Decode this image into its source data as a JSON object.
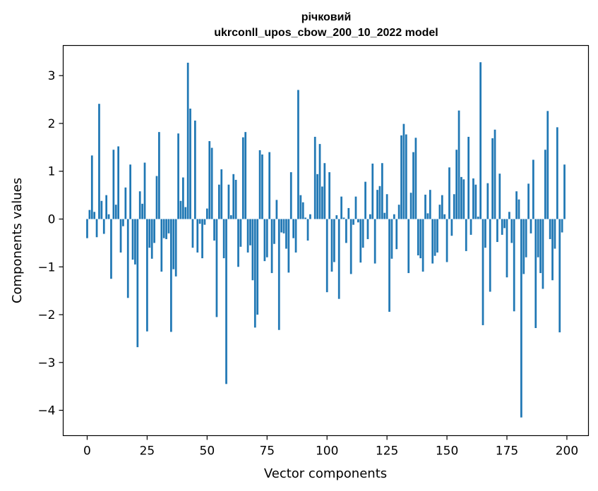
{
  "chart_data": {
    "type": "bar",
    "title": "річковий",
    "subtitle": "ukrconll_upos_cbow_200_10_2022 model",
    "xlabel": "Vector components",
    "ylabel": "Components values",
    "xlim": [
      -10,
      209
    ],
    "ylim": [
      -4.53,
      3.63
    ],
    "xticks": [
      0,
      25,
      50,
      75,
      100,
      125,
      150,
      175,
      200
    ],
    "yticks": [
      -4,
      -3,
      -2,
      -1,
      0,
      1,
      2,
      3
    ],
    "xtick_labels": [
      "0",
      "25",
      "50",
      "75",
      "100",
      "125",
      "150",
      "175",
      "200"
    ],
    "ytick_labels": [
      "−4",
      "−3",
      "−2",
      "−1",
      "0",
      "1",
      "2",
      "3"
    ],
    "grid": false,
    "bar_color": "#1f77b4",
    "x": [
      0,
      1,
      2,
      3,
      4,
      5,
      6,
      7,
      8,
      9,
      10,
      11,
      12,
      13,
      14,
      15,
      16,
      17,
      18,
      19,
      20,
      21,
      22,
      23,
      24,
      25,
      26,
      27,
      28,
      29,
      30,
      31,
      32,
      33,
      34,
      35,
      36,
      37,
      38,
      39,
      40,
      41,
      42,
      43,
      44,
      45,
      46,
      47,
      48,
      49,
      50,
      51,
      52,
      53,
      54,
      55,
      56,
      57,
      58,
      59,
      60,
      61,
      62,
      63,
      64,
      65,
      66,
      67,
      68,
      69,
      70,
      71,
      72,
      73,
      74,
      75,
      76,
      77,
      78,
      79,
      80,
      81,
      82,
      83,
      84,
      85,
      86,
      87,
      88,
      89,
      90,
      91,
      92,
      93,
      94,
      95,
      96,
      97,
      98,
      99,
      100,
      101,
      102,
      103,
      104,
      105,
      106,
      107,
      108,
      109,
      110,
      111,
      112,
      113,
      114,
      115,
      116,
      117,
      118,
      119,
      120,
      121,
      122,
      123,
      124,
      125,
      126,
      127,
      128,
      129,
      130,
      131,
      132,
      133,
      134,
      135,
      136,
      137,
      138,
      139,
      140,
      141,
      142,
      143,
      144,
      145,
      146,
      147,
      148,
      149,
      150,
      151,
      152,
      153,
      154,
      155,
      156,
      157,
      158,
      159,
      160,
      161,
      162,
      163,
      164,
      165,
      166,
      167,
      168,
      169,
      170,
      171,
      172,
      173,
      174,
      175,
      176,
      177,
      178,
      179,
      180,
      181,
      182,
      183,
      184,
      185,
      186,
      187,
      188,
      189,
      190,
      191,
      192,
      193,
      194,
      195,
      196,
      197,
      198,
      199
    ],
    "values": [
      -0.4,
      0.19,
      1.33,
      0.15,
      -0.38,
      2.41,
      0.38,
      -0.31,
      0.5,
      0.1,
      -1.25,
      1.45,
      0.3,
      1.52,
      -0.7,
      -0.15,
      0.66,
      -1.65,
      1.14,
      -0.85,
      -0.95,
      -2.68,
      0.58,
      0.32,
      1.18,
      -2.35,
      -0.6,
      -0.83,
      -0.5,
      0.9,
      1.82,
      -1.1,
      -0.4,
      -0.42,
      -0.3,
      -2.36,
      -1.05,
      -1.2,
      1.79,
      0.38,
      0.87,
      0.25,
      3.27,
      2.31,
      -0.6,
      2.06,
      -0.7,
      -0.1,
      -0.82,
      -0.12,
      0.22,
      1.63,
      1.49,
      -0.45,
      -2.05,
      0.72,
      1.04,
      -0.82,
      -3.45,
      0.72,
      0.08,
      0.94,
      0.82,
      -1.0,
      -0.58,
      1.71,
      1.82,
      -0.7,
      -0.55,
      -1.28,
      -2.27,
      -2.0,
      1.44,
      1.35,
      -0.88,
      -0.8,
      1.4,
      -1.13,
      -0.52,
      0.4,
      -2.32,
      -0.28,
      -0.3,
      -0.62,
      -1.12,
      0.98,
      -0.4,
      -0.7,
      2.7,
      0.5,
      0.35,
      0.03,
      -0.45,
      0.1,
      0.0,
      1.72,
      0.94,
      1.57,
      0.68,
      1.17,
      -1.53,
      0.98,
      -1.1,
      -0.9,
      0.08,
      -1.67,
      0.47,
      0.03,
      -0.5,
      0.23,
      -1.15,
      -0.12,
      0.47,
      -0.07,
      -0.91,
      -0.6,
      0.78,
      -0.42,
      0.1,
      1.16,
      -0.93,
      0.61,
      0.69,
      1.17,
      0.13,
      0.52,
      -1.94,
      -0.83,
      0.1,
      -0.63,
      0.3,
      1.75,
      1.99,
      1.77,
      -1.13,
      0.55,
      1.4,
      1.7,
      -0.76,
      -0.82,
      -1.1,
      0.51,
      0.12,
      0.61,
      -0.93,
      -0.77,
      -0.7,
      0.3,
      0.5,
      0.1,
      -0.9,
      1.08,
      -0.35,
      0.52,
      1.45,
      2.27,
      0.88,
      0.83,
      -0.67,
      1.72,
      -0.33,
      0.85,
      0.72,
      0.05,
      3.28,
      -2.22,
      -0.6,
      0.75,
      -1.52,
      1.69,
      1.87,
      -0.48,
      0.95,
      -0.33,
      -0.19,
      -1.22,
      0.15,
      -0.5,
      -1.93,
      0.58,
      0.41,
      -4.15,
      -1.15,
      -0.8,
      0.74,
      -0.3,
      1.24,
      -2.28,
      -0.8,
      -1.13,
      -1.46,
      1.45,
      2.26,
      -0.42,
      -1.28,
      -0.62,
      1.92,
      -2.37,
      -0.28,
      1.14
    ]
  }
}
